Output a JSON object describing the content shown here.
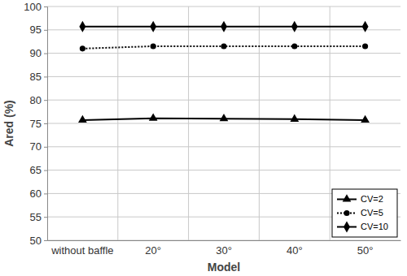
{
  "chart_data": {
    "type": "line",
    "x_label": "Model",
    "y_label": "Ared (%)",
    "categories": [
      "without baffle",
      "20°",
      "30°",
      "40°",
      "50°"
    ],
    "series": [
      {
        "name": "CV=2",
        "color": "#000000",
        "marker": "triangle",
        "line_style": "solid",
        "values": [
          75.7,
          76.1,
          76.0,
          75.9,
          75.7
        ]
      },
      {
        "name": "CV=5",
        "color": "#000000",
        "marker": "circle",
        "line_style": "dotted",
        "values": [
          91.0,
          91.5,
          91.5,
          91.5,
          91.5
        ]
      },
      {
        "name": "CV=10",
        "color": "#000000",
        "marker": "diamond",
        "line_style": "solid",
        "values": [
          95.7,
          95.7,
          95.7,
          95.7,
          95.7
        ]
      }
    ],
    "ylim": [
      50,
      100
    ],
    "yticks": [
      50,
      55,
      60,
      65,
      70,
      75,
      80,
      85,
      90,
      95,
      100
    ],
    "grid": true,
    "legend": "lower right"
  }
}
